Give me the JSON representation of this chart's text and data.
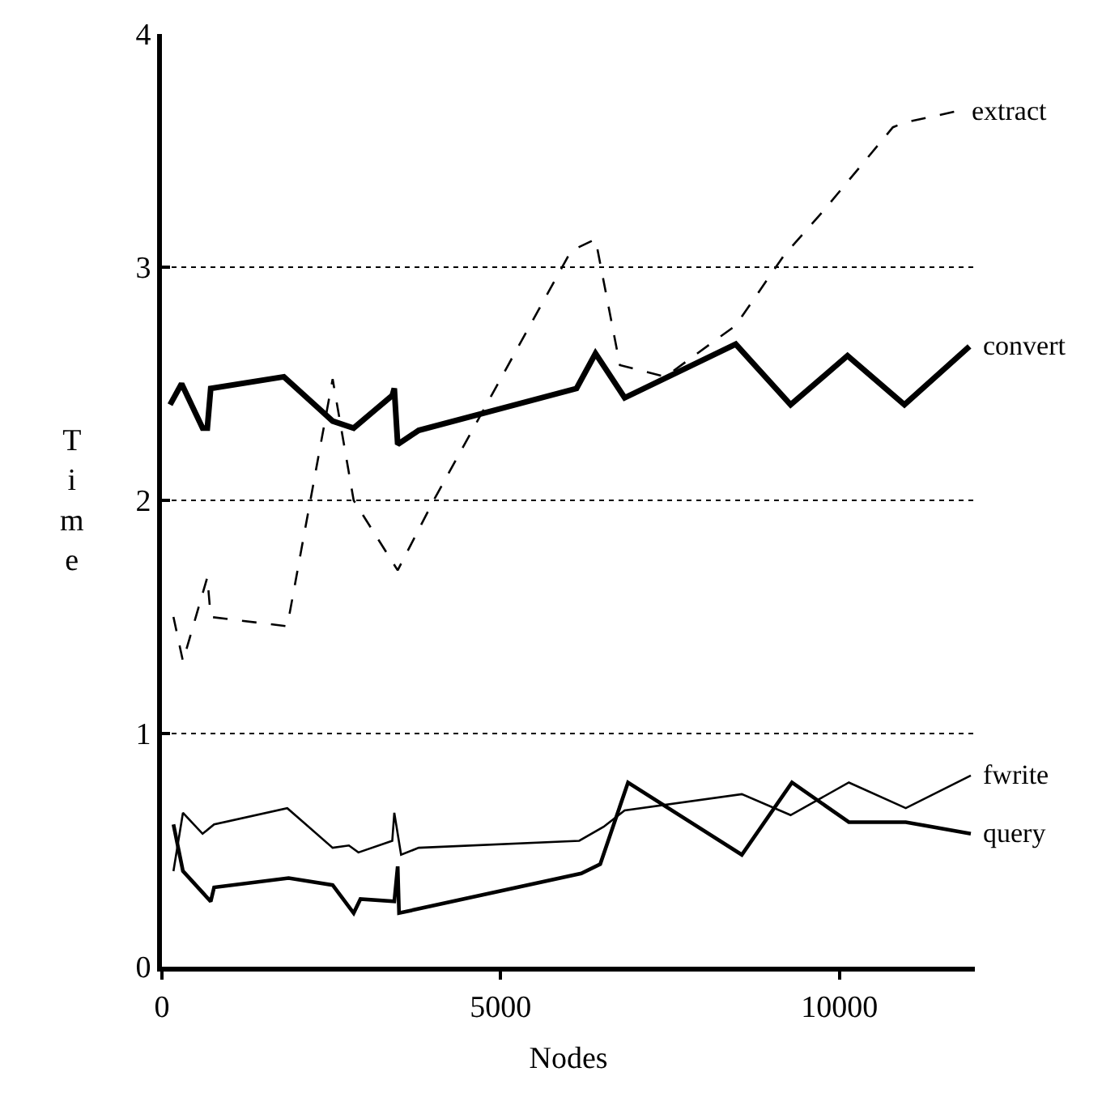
{
  "chart_data": {
    "type": "line",
    "xlabel": "Nodes",
    "ylabel": "Time",
    "xlim": [
      0,
      12000
    ],
    "ylim": [
      0,
      4
    ],
    "xticks": [
      0,
      5000,
      10000
    ],
    "yticks": [
      0,
      1,
      2,
      3,
      4
    ],
    "grid": "y",
    "legend": false,
    "marker": "none",
    "series": [
      {
        "name": "extract",
        "color": "#000000",
        "line_style": "dashed",
        "x": [
          170,
          310,
          670,
          720,
          1850,
          2520,
          2830,
          3480,
          4030,
          6040,
          6400,
          6760,
          7430,
          8470,
          9180,
          9760,
          10790,
          10960,
          11750
        ],
        "values": [
          1.5,
          1.31,
          1.67,
          1.5,
          1.46,
          2.52,
          2.0,
          1.7,
          2.01,
          3.07,
          3.12,
          2.58,
          2.53,
          2.75,
          3.05,
          3.24,
          3.6,
          3.62,
          3.67
        ]
      },
      {
        "name": "convert",
        "color": "#000000",
        "line_style": "solid",
        "x": [
          120,
          290,
          600,
          670,
          720,
          1800,
          2520,
          2830,
          3400,
          3430,
          3480,
          3790,
          6120,
          6400,
          6830,
          8470,
          9280,
          10120,
          10960,
          11920
        ],
        "values": [
          2.41,
          2.5,
          2.31,
          2.31,
          2.48,
          2.53,
          2.34,
          2.31,
          2.45,
          2.48,
          2.24,
          2.3,
          2.48,
          2.63,
          2.44,
          2.67,
          2.41,
          2.62,
          2.41,
          2.66
        ]
      },
      {
        "name": "fwrite",
        "color": "#000000",
        "line_style": "solid",
        "x": [
          170,
          310,
          600,
          770,
          1850,
          2520,
          2760,
          2900,
          3400,
          3430,
          3530,
          3790,
          6160,
          6520,
          6830,
          8560,
          9280,
          10140,
          10980,
          11940
        ],
        "values": [
          0.41,
          0.66,
          0.57,
          0.61,
          0.68,
          0.51,
          0.52,
          0.49,
          0.54,
          0.66,
          0.48,
          0.51,
          0.54,
          0.6,
          0.67,
          0.74,
          0.65,
          0.79,
          0.68,
          0.82
        ]
      },
      {
        "name": "query",
        "color": "#000000",
        "line_style": "solid",
        "x": [
          170,
          310,
          720,
          770,
          1870,
          2520,
          2830,
          2930,
          3430,
          3480,
          3500,
          6190,
          6470,
          6880,
          8560,
          9300,
          10140,
          10980,
          11940
        ],
        "values": [
          0.61,
          0.41,
          0.28,
          0.34,
          0.38,
          0.35,
          0.23,
          0.29,
          0.28,
          0.43,
          0.23,
          0.4,
          0.44,
          0.79,
          0.48,
          0.79,
          0.62,
          0.62,
          0.57
        ]
      }
    ]
  }
}
